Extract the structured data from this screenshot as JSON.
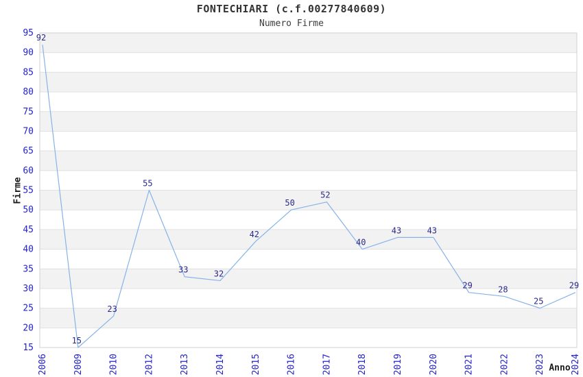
{
  "header": {
    "title": "FONTECHIARI (c.f.00277840609)",
    "subtitle": "Numero Firme"
  },
  "chart_data": {
    "type": "line",
    "title": "FONTECHIARI (c.f.00277840609)",
    "subtitle": "Numero Firme",
    "xlabel": "Anno",
    "ylabel": "Firme",
    "x": [
      "2006",
      "2009",
      "2010",
      "2012",
      "2013",
      "2014",
      "2015",
      "2016",
      "2017",
      "2018",
      "2019",
      "2020",
      "2021",
      "2022",
      "2023",
      "2024"
    ],
    "values": [
      92,
      15,
      23,
      55,
      33,
      32,
      42,
      50,
      52,
      40,
      43,
      43,
      29,
      28,
      25,
      29
    ],
    "ylim": [
      15,
      95
    ],
    "ytick_step": 5,
    "yticks": [
      15,
      20,
      25,
      30,
      35,
      40,
      45,
      50,
      55,
      60,
      65,
      70,
      75,
      80,
      85,
      90,
      95
    ],
    "grid": "horizontal-bands-alternating",
    "legend": "none",
    "point_labels_shown": true,
    "colors": {
      "line": "#85b3e8",
      "point_label": "#292989",
      "tick_label": "#2222cc",
      "band_gray": "#f2f2f2",
      "band_white": "#ffffff",
      "grid_line": "#e0e0e0",
      "plot_border": "#d0d0d0",
      "title_text": "#333333",
      "axis_label_text": "#1a1a1a"
    }
  }
}
